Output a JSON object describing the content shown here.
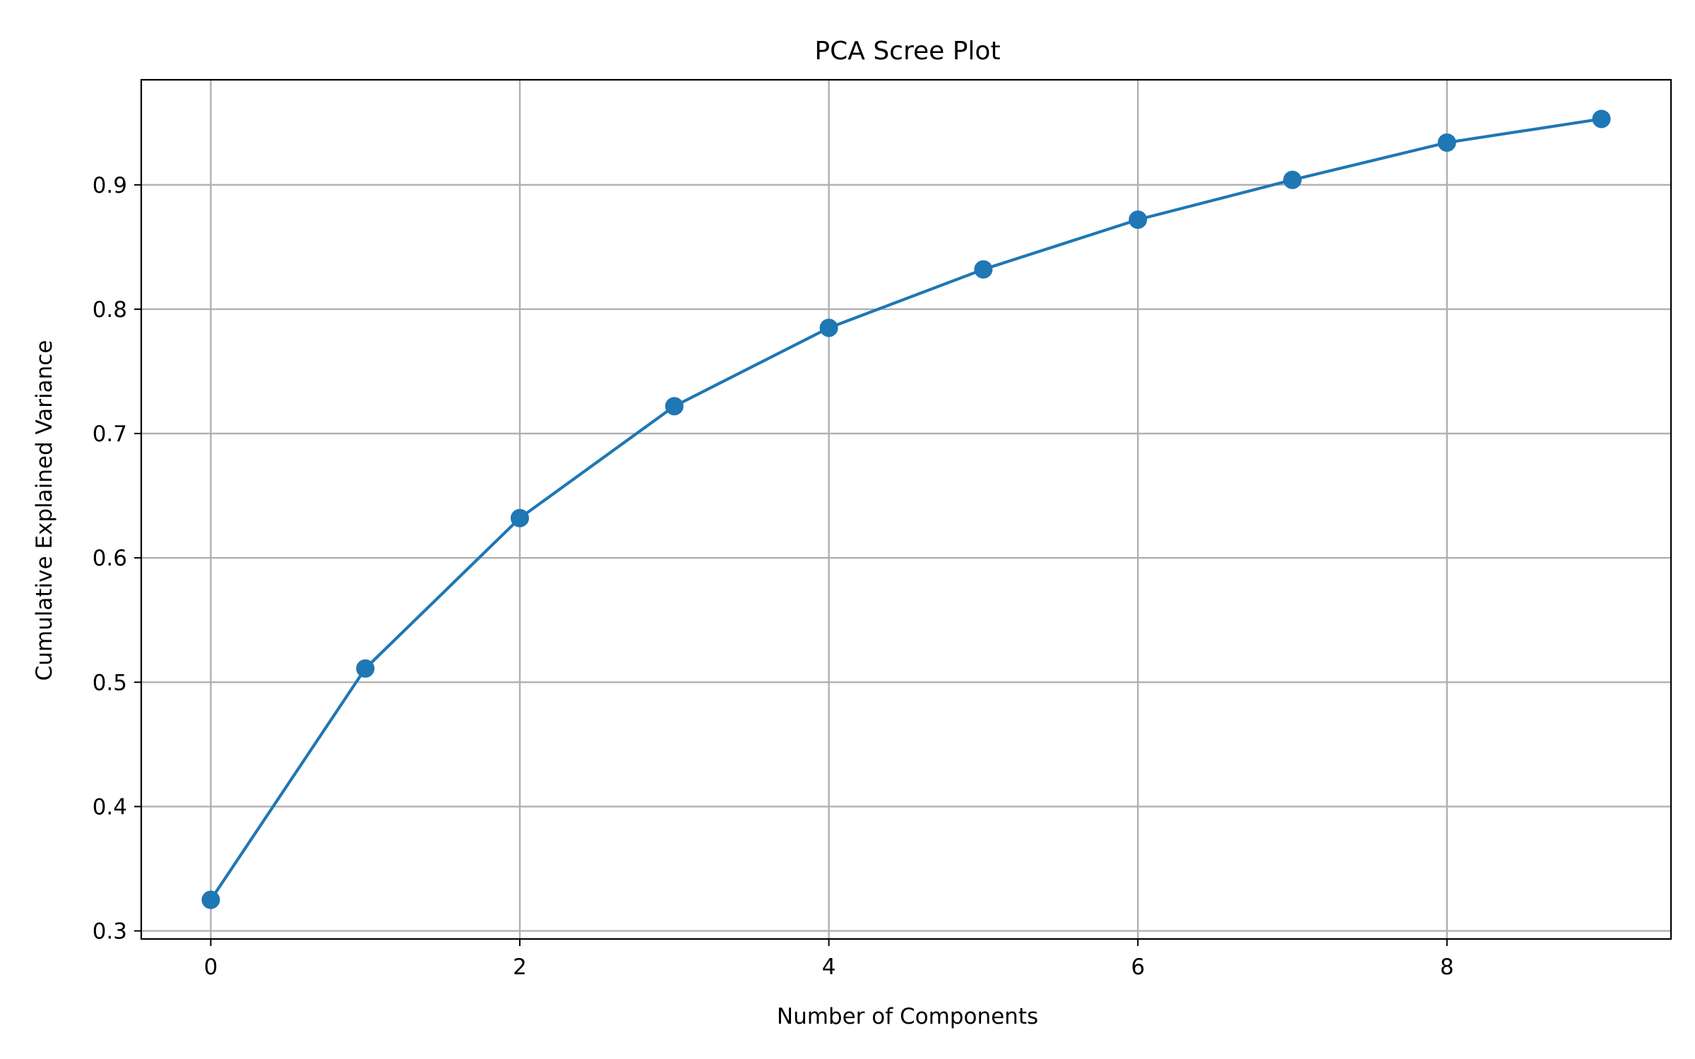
{
  "chart_data": {
    "type": "line",
    "title": "PCA Scree Plot",
    "xlabel": "Number of Components",
    "ylabel": "Cumulative Explained Variance",
    "x": [
      0,
      1,
      2,
      3,
      4,
      5,
      6,
      7,
      8,
      9
    ],
    "series": [
      {
        "values": [
          0.325,
          0.511,
          0.632,
          0.722,
          0.785,
          0.832,
          0.872,
          0.904,
          0.934,
          0.953
        ],
        "color": "#1f77b4",
        "marker": "circle"
      }
    ],
    "xlim": [
      -0.45,
      9.45
    ],
    "ylim": [
      0.2935,
      0.9845
    ],
    "xticks": [
      0,
      2,
      4,
      6,
      8
    ],
    "xtick_labels": [
      "0",
      "2",
      "4",
      "6",
      "8"
    ],
    "yticks": [
      0.3,
      0.4,
      0.5,
      0.6,
      0.7,
      0.8,
      0.9
    ],
    "ytick_labels": [
      "0.3",
      "0.4",
      "0.5",
      "0.6",
      "0.7",
      "0.8",
      "0.9"
    ],
    "grid": true,
    "legend": false
  }
}
